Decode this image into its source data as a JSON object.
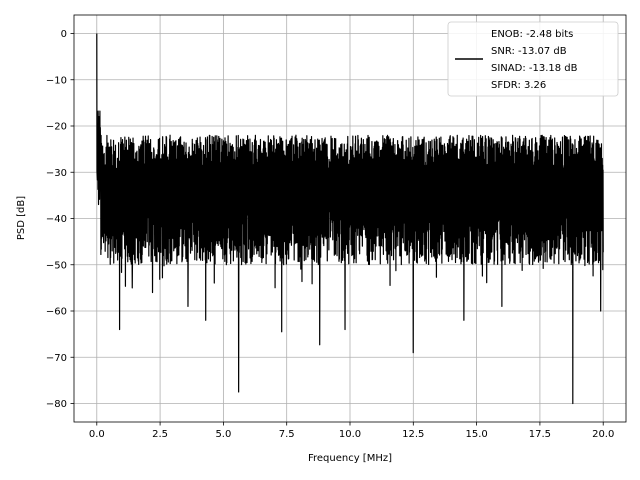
{
  "chart_data": {
    "type": "line",
    "xlabel": "Frequency [MHz]",
    "ylabel": "PSD [dB]",
    "xlim": [
      -0.9,
      20.9
    ],
    "ylim": [
      -84,
      4
    ],
    "xticks": [
      0.0,
      2.5,
      5.0,
      7.5,
      10.0,
      12.5,
      15.0,
      17.5,
      20.0
    ],
    "xtick_labels": [
      "0.0",
      "2.5",
      "5.0",
      "7.5",
      "10.0",
      "12.5",
      "15.0",
      "17.5",
      "20.0"
    ],
    "yticks": [
      0,
      -10,
      -20,
      -30,
      -40,
      -50,
      -60,
      -70,
      -80
    ],
    "ytick_labels": [
      "0",
      "−10",
      "−20",
      "−30",
      "−40",
      "−50",
      "−60",
      "−70",
      "−80"
    ],
    "grid": true,
    "legend_position": "top-right",
    "series": [
      {
        "color": "#000000",
        "legend_lines": [
          "ENOB: -2.48 bits",
          "SNR: -13.07 dB",
          "SINAD: -13.18 dB",
          "SFDR: 3.26"
        ],
        "x_range": [
          0,
          20
        ],
        "peak": {
          "x": 0.0,
          "y": 0.0
        },
        "approx_envelope": {
          "upper": -22,
          "lower": -50
        },
        "notable_dips": [
          {
            "x": 0.9,
            "y": -64
          },
          {
            "x": 1.4,
            "y": -55
          },
          {
            "x": 2.2,
            "y": -56
          },
          {
            "x": 3.6,
            "y": -59
          },
          {
            "x": 4.3,
            "y": -62
          },
          {
            "x": 5.6,
            "y": -77.5
          },
          {
            "x": 7.3,
            "y": -64.5
          },
          {
            "x": 8.8,
            "y": -67.3
          },
          {
            "x": 9.8,
            "y": -64
          },
          {
            "x": 12.5,
            "y": -69
          },
          {
            "x": 14.5,
            "y": -62
          },
          {
            "x": 16.0,
            "y": -59
          },
          {
            "x": 18.8,
            "y": -80
          },
          {
            "x": 19.9,
            "y": -60
          }
        ]
      }
    ]
  }
}
